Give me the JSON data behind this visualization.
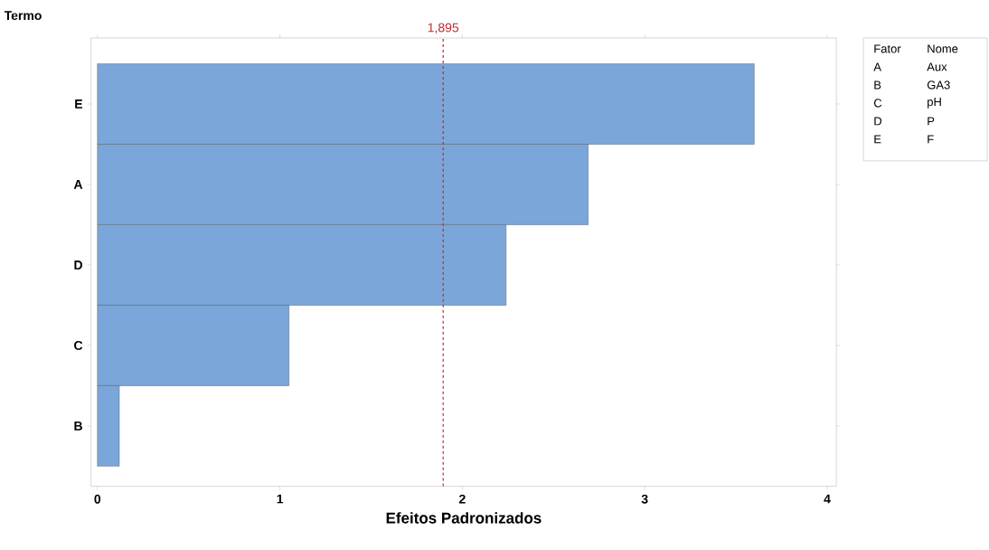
{
  "chart_data": {
    "type": "bar",
    "orientation": "horizontal",
    "xlabel": "Efeitos Padronizados",
    "ylabel": "Termo",
    "categories": [
      "E",
      "A",
      "D",
      "C",
      "B"
    ],
    "values": [
      3.6,
      2.69,
      2.24,
      1.05,
      0.12
    ],
    "color": "#7ba6d9",
    "xlim": [
      -0.035,
      4.05
    ],
    "xticks": [
      0,
      1,
      2,
      3,
      4
    ],
    "ref_lines": [
      {
        "axis": "x",
        "value": 1.895,
        "label": "1,895",
        "color": "#c0282d",
        "line_style": "dashed"
      }
    ],
    "annotations": [
      "Fator",
      "Nome",
      "A",
      "Aux",
      "B",
      "GA3",
      "C",
      "pH",
      "D",
      "P",
      "E",
      "F"
    ]
  }
}
